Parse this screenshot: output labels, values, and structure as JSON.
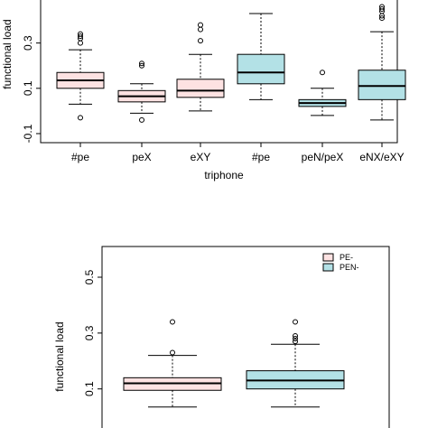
{
  "colors": {
    "pe_minus": "#fde2e2",
    "pen_minus": "#b3e1e6"
  },
  "chart_data": [
    {
      "type": "box",
      "xlabel": "triphone",
      "ylabel": "functional load",
      "ylim": [
        -0.14,
        0.49
      ],
      "yticks": [
        -0.1,
        0.1,
        0.3
      ],
      "ytick_labels": [
        "-0.1",
        "0.1",
        "0.3"
      ],
      "categories": [
        "#pe",
        "peX",
        "eXY",
        "#pe",
        "peN/peX",
        "eNX/eXY"
      ],
      "series": [
        {
          "category": "#pe",
          "group": "pe_minus",
          "lower_whisker": 0.03,
          "q1": 0.1,
          "median": 0.135,
          "q3": 0.17,
          "upper_whisker": 0.27,
          "outliers": [
            0.34,
            0.33,
            0.32,
            0.3,
            -0.03
          ]
        },
        {
          "category": "peX",
          "group": "pe_minus",
          "lower_whisker": -0.01,
          "q1": 0.04,
          "median": 0.065,
          "q3": 0.09,
          "upper_whisker": 0.12,
          "outliers": [
            0.21,
            0.2,
            -0.04
          ]
        },
        {
          "category": "eXY",
          "group": "pe_minus",
          "lower_whisker": 0.0,
          "q1": 0.06,
          "median": 0.09,
          "q3": 0.14,
          "upper_whisker": 0.25,
          "outliers": [
            0.38,
            0.36,
            0.31
          ]
        },
        {
          "category": "#pe",
          "group": "pen_minus",
          "lower_whisker": 0.05,
          "q1": 0.12,
          "median": 0.17,
          "q3": 0.25,
          "upper_whisker": 0.43,
          "outliers": []
        },
        {
          "category": "peN/peX",
          "group": "pen_minus",
          "lower_whisker": -0.02,
          "q1": 0.02,
          "median": 0.035,
          "q3": 0.05,
          "upper_whisker": 0.1,
          "outliers": [
            0.17
          ]
        },
        {
          "category": "eNX/eXY",
          "group": "pen_minus",
          "lower_whisker": -0.04,
          "q1": 0.05,
          "median": 0.11,
          "q3": 0.18,
          "upper_whisker": 0.35,
          "outliers": [
            0.46,
            0.45,
            0.44,
            0.42,
            0.41
          ]
        }
      ]
    },
    {
      "type": "box",
      "xlabel": "",
      "ylabel": "functional load",
      "ylim": [
        -0.04,
        0.61
      ],
      "yticks": [
        0.1,
        0.3,
        0.5
      ],
      "ytick_labels": [
        "0.1",
        "0.3",
        "0.5"
      ],
      "legend": {
        "placement": "top-right",
        "entries": [
          {
            "label": "PE-",
            "group": "pe_minus"
          },
          {
            "label": "PEN-",
            "group": "pen_minus"
          }
        ]
      },
      "series": [
        {
          "group": "pe_minus",
          "lower_whisker": 0.035,
          "q1": 0.095,
          "median": 0.12,
          "q3": 0.14,
          "upper_whisker": 0.22,
          "outliers": [
            0.34,
            0.23
          ]
        },
        {
          "group": "pen_minus",
          "lower_whisker": 0.035,
          "q1": 0.1,
          "median": 0.13,
          "q3": 0.165,
          "upper_whisker": 0.26,
          "outliers": [
            0.34,
            0.29,
            0.28,
            0.27
          ]
        }
      ]
    }
  ]
}
